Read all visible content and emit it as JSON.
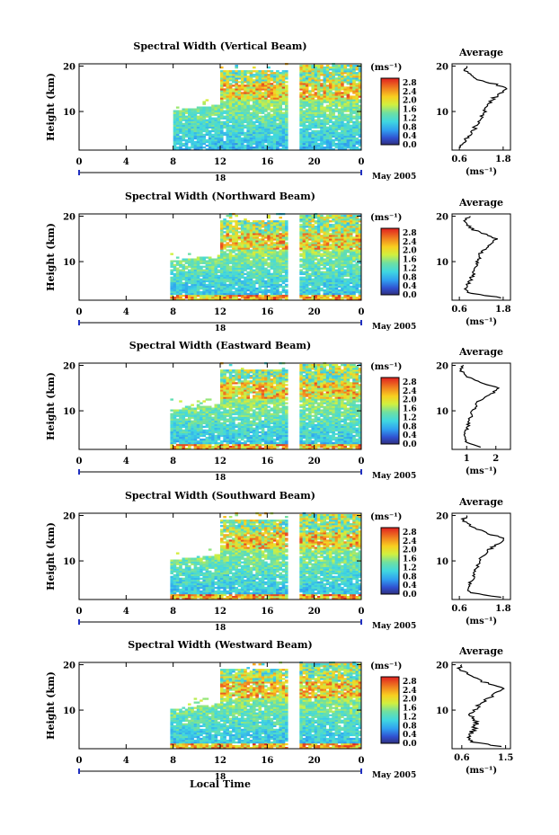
{
  "figure": {
    "xlabel": "Local Time",
    "date_label": "May 2005",
    "day_label": "18",
    "colorbar_unit": "(ms⁻¹)",
    "profile_title": "Average",
    "profile_xlabel": "(ms⁻¹)"
  },
  "chart_data": [
    {
      "type": "heatmap",
      "title": "Spectral Width (Vertical Beam)",
      "ylabel": "Height (km)",
      "xlabel": "",
      "x_ticks": [
        "0",
        "4",
        "8",
        "12",
        "16",
        "20",
        "0"
      ],
      "y_ticks": [
        "10",
        "20"
      ],
      "xlim": [
        0,
        24
      ],
      "ylim": [
        1.5,
        20.5
      ],
      "colorbar_ticks": [
        "2.8",
        "2.4",
        "2.0",
        "1.6",
        "1.2",
        "0.8",
        "0.4",
        "0.0"
      ],
      "colorbar_range": [
        0,
        3.0
      ],
      "data_gaps": [
        [
          0,
          7.8
        ],
        [
          17.7,
          18.6
        ]
      ],
      "profile": {
        "title": "Average",
        "x_ticks": [
          "0.6",
          "1.8"
        ],
        "xlim": [
          0.4,
          2.0
        ],
        "y_ticks": [
          "10",
          "20"
        ],
        "heights": [
          2,
          3,
          4,
          5,
          6,
          7,
          8,
          9,
          10,
          11,
          12,
          13,
          14,
          15,
          16,
          17,
          18,
          19,
          20
        ],
        "values": [
          0.65,
          0.7,
          0.8,
          0.9,
          1.0,
          1.05,
          1.15,
          1.2,
          1.3,
          1.35,
          1.45,
          1.55,
          1.75,
          1.9,
          1.6,
          1.1,
          0.9,
          0.75,
          0.8
        ]
      }
    },
    {
      "type": "heatmap",
      "title": "Spectral Width (Northward Beam)",
      "ylabel": "Height (km)",
      "xlabel": "",
      "x_ticks": [
        "0",
        "4",
        "8",
        "12",
        "16",
        "20",
        "0"
      ],
      "y_ticks": [
        "10",
        "20"
      ],
      "xlim": [
        0,
        24
      ],
      "ylim": [
        1.5,
        20.5
      ],
      "colorbar_ticks": [
        "2.8",
        "2.4",
        "2.0",
        "1.6",
        "1.2",
        "0.8",
        "0.4",
        "0.0"
      ],
      "colorbar_range": [
        0,
        3.0
      ],
      "data_gaps": [
        [
          0,
          7.6
        ],
        [
          17.7,
          18.6
        ]
      ],
      "profile": {
        "title": "Average",
        "x_ticks": [
          "0.6",
          "1.8"
        ],
        "xlim": [
          0.4,
          2.0
        ],
        "y_ticks": [
          "10",
          "20"
        ],
        "heights": [
          2,
          3,
          4,
          5,
          6,
          7,
          8,
          9,
          10,
          11,
          12,
          13,
          14,
          15,
          16,
          17,
          18,
          19,
          20
        ],
        "values": [
          1.8,
          0.9,
          0.8,
          0.85,
          0.9,
          0.95,
          1.0,
          1.05,
          1.1,
          1.15,
          1.2,
          1.35,
          1.5,
          1.6,
          1.3,
          1.0,
          0.8,
          0.7,
          0.9
        ]
      }
    },
    {
      "type": "heatmap",
      "title": "Spectral Width (Eastward Beam)",
      "ylabel": "Height (km)",
      "xlabel": "",
      "x_ticks": [
        "0",
        "4",
        "8",
        "12",
        "16",
        "20",
        "0"
      ],
      "y_ticks": [
        "10",
        "20"
      ],
      "xlim": [
        0,
        24
      ],
      "ylim": [
        1.5,
        20.5
      ],
      "colorbar_ticks": [
        "2.8",
        "2.4",
        "2.0",
        "1.6",
        "1.2",
        "0.8",
        "0.4",
        "0.0"
      ],
      "colorbar_range": [
        0,
        3.0
      ],
      "data_gaps": [
        [
          0,
          7.6
        ],
        [
          17.7,
          18.6
        ]
      ],
      "profile": {
        "title": "Average",
        "x_ticks": [
          "1",
          "2"
        ],
        "xlim": [
          0.5,
          2.5
        ],
        "y_ticks": [
          "10",
          "20"
        ],
        "heights": [
          2,
          3,
          4,
          5,
          6,
          7,
          8,
          9,
          10,
          11,
          12,
          13,
          14,
          15,
          16,
          17,
          18,
          19,
          20
        ],
        "values": [
          1.5,
          1.0,
          0.9,
          0.95,
          1.0,
          1.05,
          1.1,
          1.15,
          1.2,
          1.3,
          1.4,
          1.6,
          1.9,
          2.1,
          1.6,
          1.2,
          0.9,
          0.8,
          0.9
        ]
      }
    },
    {
      "type": "heatmap",
      "title": "Spectral Width (Southward Beam)",
      "ylabel": "Height (km)",
      "xlabel": "",
      "x_ticks": [
        "0",
        "4",
        "8",
        "12",
        "16",
        "20",
        "0"
      ],
      "y_ticks": [
        "10",
        "20"
      ],
      "xlim": [
        0,
        24
      ],
      "ylim": [
        1.5,
        20.5
      ],
      "colorbar_ticks": [
        "2.8",
        "2.4",
        "2.0",
        "1.6",
        "1.2",
        "0.8",
        "0.4",
        "0.0"
      ],
      "colorbar_range": [
        0,
        3.0
      ],
      "data_gaps": [
        [
          0,
          7.6
        ],
        [
          17.7,
          18.6
        ]
      ],
      "profile": {
        "title": "Average",
        "x_ticks": [
          "0.6",
          "1.8"
        ],
        "xlim": [
          0.4,
          2.0
        ],
        "y_ticks": [
          "10",
          "20"
        ],
        "heights": [
          2,
          3,
          4,
          5,
          6,
          7,
          8,
          9,
          10,
          11,
          12,
          13,
          14,
          15,
          16,
          17,
          18,
          19,
          20
        ],
        "values": [
          1.7,
          0.9,
          0.85,
          0.9,
          0.95,
          1.0,
          1.05,
          1.1,
          1.15,
          1.25,
          1.35,
          1.5,
          1.7,
          1.8,
          1.4,
          1.1,
          0.85,
          0.7,
          0.8
        ]
      }
    },
    {
      "type": "heatmap",
      "title": "Spectral Width (Westward Beam)",
      "ylabel": "Height (km)",
      "xlabel": "Local Time",
      "x_ticks": [
        "0",
        "4",
        "8",
        "12",
        "16",
        "20",
        "0"
      ],
      "y_ticks": [
        "10",
        "20"
      ],
      "xlim": [
        0,
        24
      ],
      "ylim": [
        1.5,
        20.5
      ],
      "colorbar_ticks": [
        "2.8",
        "2.4",
        "2.0",
        "1.6",
        "1.2",
        "0.8",
        "0.4",
        "0.0"
      ],
      "colorbar_range": [
        0,
        3.0
      ],
      "data_gaps": [
        [
          0,
          7.6
        ],
        [
          17.7,
          18.6
        ]
      ],
      "profile": {
        "title": "Average",
        "x_ticks": [
          "0.6",
          "1.5"
        ],
        "xlim": [
          0.4,
          1.6
        ],
        "y_ticks": [
          "10",
          "20"
        ],
        "heights": [
          2,
          3,
          4,
          5,
          6,
          7,
          8,
          9,
          10,
          11,
          12,
          13,
          14,
          15,
          16,
          17,
          18,
          19,
          20
        ],
        "values": [
          1.4,
          0.8,
          0.75,
          0.8,
          0.85,
          0.9,
          0.85,
          0.8,
          0.85,
          0.95,
          1.05,
          1.2,
          1.35,
          1.45,
          1.1,
          0.9,
          0.7,
          0.55,
          0.6
        ]
      }
    }
  ]
}
